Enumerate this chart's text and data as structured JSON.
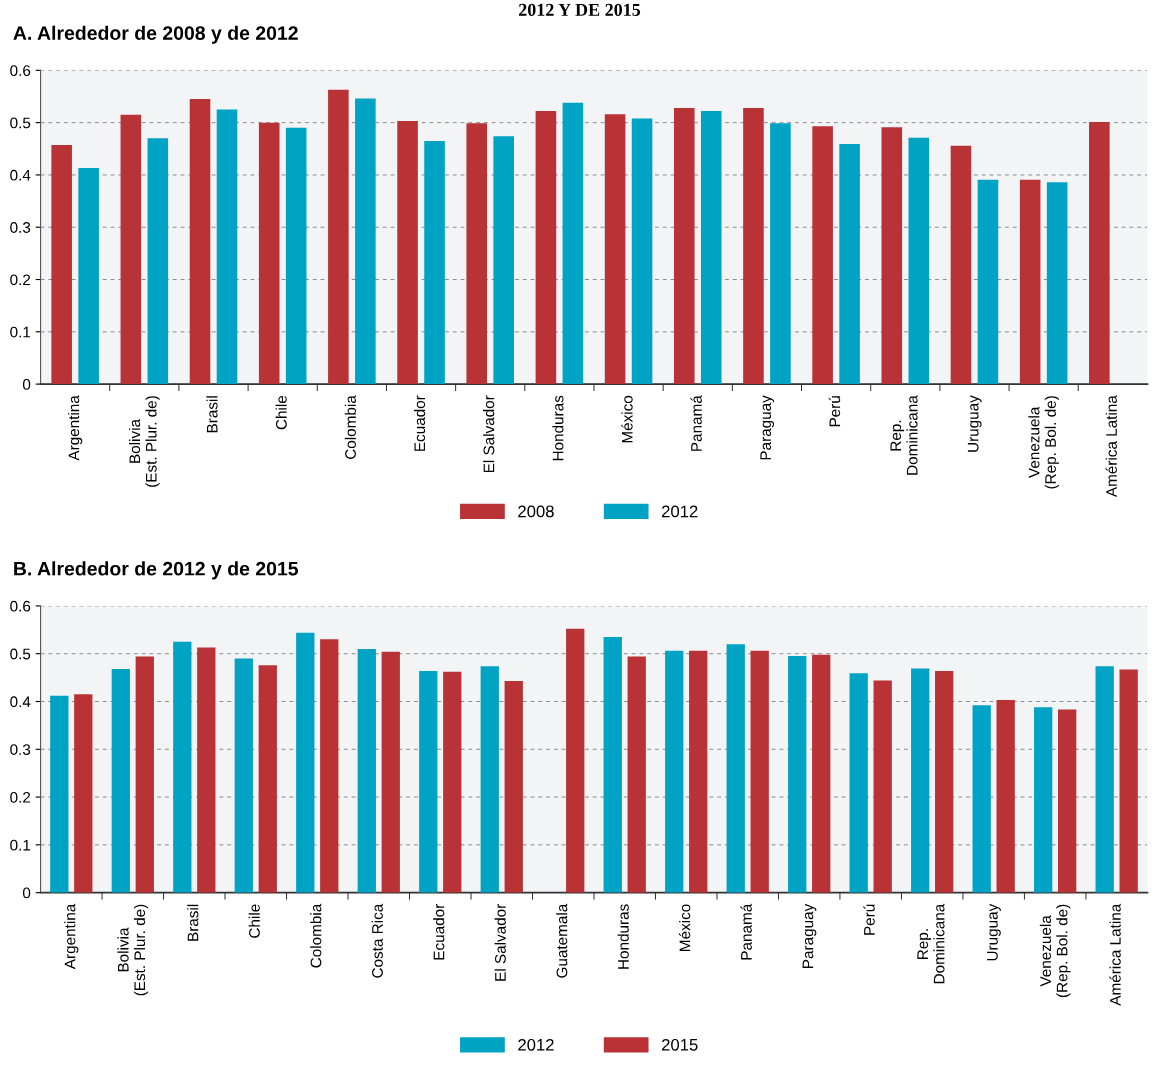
{
  "chart_data": [
    {
      "type": "bar",
      "title": "A. Alrededor de 2008 y de 2012",
      "annotations": [
        "2012 Y DE 2015"
      ],
      "categories": [
        "Argentina",
        "Bolivia\n(Est. Plur. de)",
        "Brasil",
        "Chile",
        "Colombia",
        "Ecuador",
        "El Salvador",
        "Honduras",
        "México",
        "Panamá",
        "Paraguay",
        "Perú",
        "Rep.\nDominicana",
        "Uruguay",
        "Venezuela\n(Rep. Bol. de)",
        "América Latina"
      ],
      "series": [
        {
          "name": "2008",
          "color": "#b83236",
          "values": [
            0.457,
            0.515,
            0.545,
            0.5,
            0.563,
            0.503,
            0.499,
            0.522,
            0.516,
            0.528,
            0.528,
            0.493,
            0.491,
            0.456,
            0.391,
            0.501
          ]
        },
        {
          "name": "2012",
          "color": "#00a3c4",
          "values": [
            0.413,
            0.47,
            0.525,
            0.49,
            0.546,
            0.465,
            0.474,
            0.538,
            0.508,
            0.522,
            0.499,
            0.459,
            0.471,
            0.391,
            0.386,
            null
          ]
        }
      ],
      "ylim": [
        0,
        0.6
      ],
      "yticks": [
        0,
        0.1,
        0.2,
        0.3,
        0.4,
        0.5,
        0.6
      ],
      "grid": "y",
      "legend": "bottom"
    },
    {
      "type": "bar",
      "title": "B. Alrededor de 2012 y de 2015",
      "categories": [
        "Argentina",
        "Bolivia\n(Est. Plur. de)",
        "Brasil",
        "Chile",
        "Colombia",
        "Costa Rica",
        "Ecuador",
        "El Salvador",
        "Guatemala",
        "Honduras",
        "México",
        "Panamá",
        "Paraguay",
        "Perú",
        "Rep.\nDominicana",
        "Uruguay",
        "Venezuela\n(Rep. Bol. de)",
        "América Latina"
      ],
      "series": [
        {
          "name": "2012",
          "color": "#00a3c4",
          "values": [
            0.412,
            0.468,
            0.525,
            0.49,
            0.544,
            0.51,
            0.464,
            0.474,
            null,
            0.535,
            0.506,
            0.52,
            0.495,
            0.459,
            0.469,
            0.392,
            0.388,
            0.474
          ]
        },
        {
          "name": "2015",
          "color": "#b83236",
          "values": [
            0.415,
            0.494,
            0.513,
            0.476,
            0.53,
            0.504,
            0.462,
            0.443,
            0.552,
            0.494,
            0.506,
            0.506,
            0.498,
            0.444,
            0.464,
            0.403,
            0.383,
            0.467
          ]
        }
      ],
      "ylim": [
        0,
        0.6
      ],
      "yticks": [
        0,
        0.1,
        0.2,
        0.3,
        0.4,
        0.5,
        0.6
      ],
      "grid": "y",
      "legend": "bottom"
    }
  ]
}
